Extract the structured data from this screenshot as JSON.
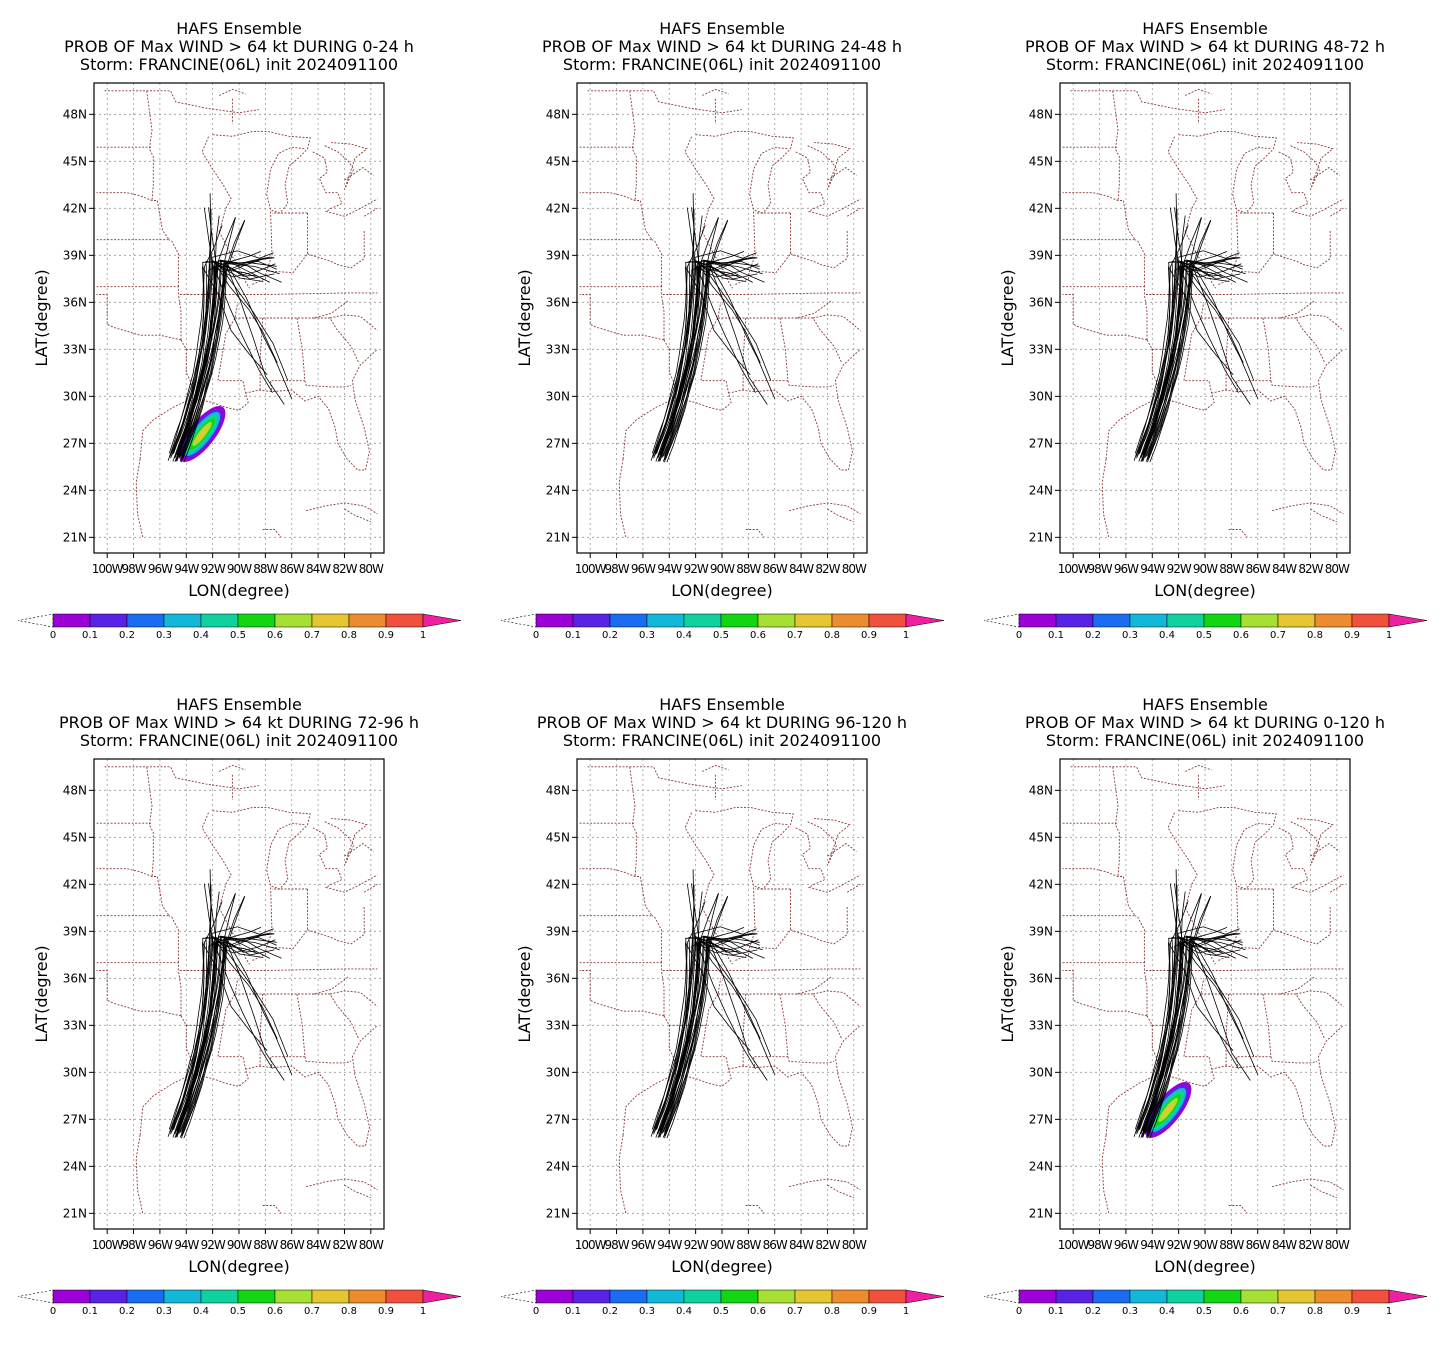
{
  "colors": {
    "grid": "#9a9a9a",
    "boundary": "#8b3a3a",
    "track": "#000000",
    "probability_scale": [
      "#9b00d6",
      "#5a22e6",
      "#1a6cf0",
      "#12b8d8",
      "#10d2a0",
      "#12d612",
      "#a6e032",
      "#e4c632",
      "#ec8c2e",
      "#f0503c",
      "#f01ea0"
    ]
  },
  "panels": [
    {
      "title_line1": "HAFS Ensemble",
      "title_line2": "PROB OF Max WIND > 64 kt DURING  0-24 h",
      "title_line3": "Storm: FRANCINE(06L) init 2024091100",
      "xlabel": "LON(degree)",
      "ylabel": "LAT(degree)",
      "show_probability": true,
      "chart_data": {
        "type": "map",
        "lon_range": [
          -101,
          -79
        ],
        "lat_range": [
          20,
          50
        ],
        "grid": true,
        "x_ticks": [
          "100W",
          "98W",
          "96W",
          "94W",
          "92W",
          "90W",
          "88W",
          "86W",
          "84W",
          "82W",
          "80W"
        ],
        "y_ticks": [
          "21N",
          "24N",
          "27N",
          "30N",
          "33N",
          "36N",
          "39N",
          "42N",
          "45N",
          "48N"
        ],
        "probability_region": {
          "center_lon": -92.8,
          "center_lat": 27.6,
          "max_prob": 0.8
        },
        "colorbar_labels": [
          "0",
          "0.1",
          "0.2",
          "0.3",
          "0.4",
          "0.5",
          "0.6",
          "0.7",
          "0.8",
          "0.9",
          "1"
        ]
      }
    },
    {
      "title_line1": "HAFS Ensemble",
      "title_line2": "PROB OF Max WIND > 64 kt DURING 24-48 h",
      "title_line3": "Storm: FRANCINE(06L) init 2024091100",
      "xlabel": "LON(degree)",
      "ylabel": "LAT(degree)",
      "show_probability": false,
      "chart_data": {
        "type": "map",
        "lon_range": [
          -101,
          -79
        ],
        "lat_range": [
          20,
          50
        ],
        "grid": true,
        "x_ticks": [
          "100W",
          "98W",
          "96W",
          "94W",
          "92W",
          "90W",
          "88W",
          "86W",
          "84W",
          "82W",
          "80W"
        ],
        "y_ticks": [
          "21N",
          "24N",
          "27N",
          "30N",
          "33N",
          "36N",
          "39N",
          "42N",
          "45N",
          "48N"
        ],
        "colorbar_labels": [
          "0",
          "0.1",
          "0.2",
          "0.3",
          "0.4",
          "0.5",
          "0.6",
          "0.7",
          "0.8",
          "0.9",
          "1"
        ]
      }
    },
    {
      "title_line1": "HAFS Ensemble",
      "title_line2": "PROB OF Max WIND > 64 kt DURING 48-72 h",
      "title_line3": "Storm: FRANCINE(06L) init 2024091100",
      "xlabel": "LON(degree)",
      "ylabel": "LAT(degree)",
      "show_probability": false,
      "chart_data": {
        "type": "map",
        "lon_range": [
          -101,
          -79
        ],
        "lat_range": [
          20,
          50
        ],
        "grid": true,
        "x_ticks": [
          "100W",
          "98W",
          "96W",
          "94W",
          "92W",
          "90W",
          "88W",
          "86W",
          "84W",
          "82W",
          "80W"
        ],
        "y_ticks": [
          "21N",
          "24N",
          "27N",
          "30N",
          "33N",
          "36N",
          "39N",
          "42N",
          "45N",
          "48N"
        ],
        "colorbar_labels": [
          "0",
          "0.1",
          "0.2",
          "0.3",
          "0.4",
          "0.5",
          "0.6",
          "0.7",
          "0.8",
          "0.9",
          "1"
        ]
      }
    },
    {
      "title_line1": "HAFS Ensemble",
      "title_line2": "PROB OF Max WIND > 64 kt DURING 72-96 h",
      "title_line3": "Storm: FRANCINE(06L) init 2024091100",
      "xlabel": "LON(degree)",
      "ylabel": "LAT(degree)",
      "show_probability": false,
      "chart_data": {
        "type": "map",
        "lon_range": [
          -101,
          -79
        ],
        "lat_range": [
          20,
          50
        ],
        "grid": true,
        "x_ticks": [
          "100W",
          "98W",
          "96W",
          "94W",
          "92W",
          "90W",
          "88W",
          "86W",
          "84W",
          "82W",
          "80W"
        ],
        "y_ticks": [
          "21N",
          "24N",
          "27N",
          "30N",
          "33N",
          "36N",
          "39N",
          "42N",
          "45N",
          "48N"
        ],
        "colorbar_labels": [
          "0",
          "0.1",
          "0.2",
          "0.3",
          "0.4",
          "0.5",
          "0.6",
          "0.7",
          "0.8",
          "0.9",
          "1"
        ]
      }
    },
    {
      "title_line1": "HAFS Ensemble",
      "title_line2": "PROB OF Max WIND > 64 kt DURING 96-120 h",
      "title_line3": "Storm: FRANCINE(06L) init 2024091100",
      "xlabel": "LON(degree)",
      "ylabel": "LAT(degree)",
      "show_probability": false,
      "chart_data": {
        "type": "map",
        "lon_range": [
          -101,
          -79
        ],
        "lat_range": [
          20,
          50
        ],
        "grid": true,
        "x_ticks": [
          "100W",
          "98W",
          "96W",
          "94W",
          "92W",
          "90W",
          "88W",
          "86W",
          "84W",
          "82W",
          "80W"
        ],
        "y_ticks": [
          "21N",
          "24N",
          "27N",
          "30N",
          "33N",
          "36N",
          "39N",
          "42N",
          "45N",
          "48N"
        ],
        "colorbar_labels": [
          "0",
          "0.1",
          "0.2",
          "0.3",
          "0.4",
          "0.5",
          "0.6",
          "0.7",
          "0.8",
          "0.9",
          "1"
        ]
      }
    },
    {
      "title_line1": "HAFS Ensemble",
      "title_line2": "PROB OF Max WIND > 64 kt DURING 0-120 h",
      "title_line3": "Storm: FRANCINE(06L) init 2024091100",
      "xlabel": "LON(degree)",
      "ylabel": "LAT(degree)",
      "show_probability": true,
      "chart_data": {
        "type": "map",
        "lon_range": [
          -101,
          -79
        ],
        "lat_range": [
          20,
          50
        ],
        "grid": true,
        "x_ticks": [
          "100W",
          "98W",
          "96W",
          "94W",
          "92W",
          "90W",
          "88W",
          "86W",
          "84W",
          "82W",
          "80W"
        ],
        "y_ticks": [
          "21N",
          "24N",
          "27N",
          "30N",
          "33N",
          "36N",
          "39N",
          "42N",
          "45N",
          "48N"
        ],
        "probability_region": {
          "center_lon": -92.8,
          "center_lat": 27.6,
          "max_prob": 0.8
        },
        "colorbar_labels": [
          "0",
          "0.1",
          "0.2",
          "0.3",
          "0.4",
          "0.5",
          "0.6",
          "0.7",
          "0.8",
          "0.9",
          "1"
        ]
      }
    }
  ]
}
